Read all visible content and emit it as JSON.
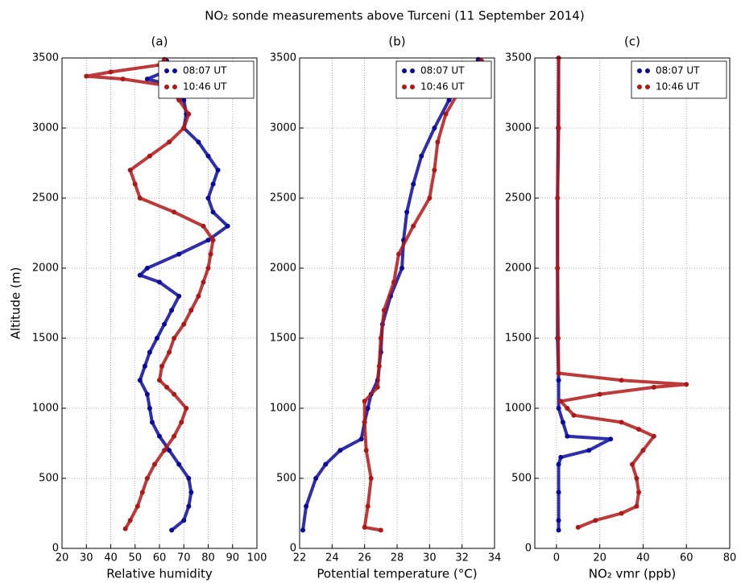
{
  "title": "NO₂ sonde measurements above Turceni (11 September 2014)",
  "chart_data": [
    {
      "type": "scatter",
      "title": "(a)",
      "xlabel": "Relative humidity",
      "ylabel": "Altitude (m)",
      "xlim": [
        20,
        100
      ],
      "xticks": [
        20,
        30,
        40,
        50,
        60,
        70,
        80,
        90,
        100
      ],
      "ylim": [
        0,
        3500
      ],
      "yticks": [
        0,
        500,
        1000,
        1500,
        2000,
        2500,
        3000,
        3500
      ],
      "grid": true,
      "legend": "upper right",
      "series": [
        {
          "name": "08:07 UT",
          "color": "#0a0a9e",
          "x": [
            65,
            70,
            72,
            73,
            72,
            68,
            64,
            60,
            57,
            56,
            55,
            52,
            54,
            56,
            59,
            62,
            65,
            68,
            60,
            52,
            55,
            68,
            80,
            88,
            82,
            80,
            82,
            84,
            80,
            76,
            70,
            71,
            70,
            66,
            55,
            62,
            63
          ],
          "values": [
            130,
            200,
            300,
            400,
            500,
            600,
            700,
            800,
            900,
            1000,
            1100,
            1200,
            1300,
            1400,
            1500,
            1600,
            1700,
            1800,
            1900,
            1950,
            2000,
            2100,
            2200,
            2300,
            2400,
            2500,
            2600,
            2700,
            2800,
            2900,
            3000,
            3100,
            3200,
            3300,
            3350,
            3400,
            3480
          ]
        },
        {
          "name": "10:46 UT",
          "color": "#b01818",
          "x": [
            46,
            48,
            51,
            53,
            55,
            58,
            62,
            66,
            69,
            71,
            66,
            63,
            60,
            61,
            64,
            66,
            70,
            73,
            76,
            78,
            80,
            81,
            82,
            78,
            66,
            52,
            50,
            48,
            56,
            64,
            70,
            72,
            68,
            64,
            45,
            30,
            40,
            60,
            62
          ],
          "values": [
            140,
            200,
            300,
            400,
            500,
            600,
            700,
            800,
            900,
            1000,
            1100,
            1150,
            1200,
            1300,
            1400,
            1500,
            1600,
            1700,
            1800,
            1900,
            2000,
            2100,
            2200,
            2300,
            2400,
            2500,
            2600,
            2700,
            2800,
            2900,
            3000,
            3100,
            3200,
            3300,
            3350,
            3370,
            3400,
            3450,
            3490
          ]
        }
      ]
    },
    {
      "type": "scatter",
      "title": "(b)",
      "xlabel": "Potential temperature (°C)",
      "xlim": [
        22,
        34
      ],
      "xticks": [
        22,
        24,
        26,
        28,
        30,
        32,
        34
      ],
      "ylim": [
        0,
        3500
      ],
      "yticks": [
        0,
        500,
        1000,
        1500,
        2000,
        2500,
        3000,
        3500
      ],
      "grid": true,
      "legend": "upper right",
      "series": [
        {
          "name": "08:07 UT",
          "color": "#0a0a9e",
          "x": [
            22.2,
            22.4,
            23.0,
            23.6,
            24.5,
            25.8,
            26.0,
            26.2,
            26.4,
            26.8,
            27.0,
            27.1,
            27.6,
            28.3,
            28.4,
            28.6,
            29.0,
            29.5,
            30.3,
            31.2,
            32.5,
            33.0
          ],
          "values": [
            130,
            300,
            500,
            600,
            700,
            780,
            900,
            1000,
            1100,
            1200,
            1400,
            1600,
            1800,
            2000,
            2200,
            2400,
            2600,
            2800,
            3000,
            3200,
            3400,
            3490
          ]
        },
        {
          "name": "10:46 UT",
          "color": "#b01818",
          "x": [
            27.0,
            26.0,
            26.2,
            26.4,
            26.1,
            26.0,
            26.0,
            26.8,
            26.9,
            27.0,
            27.2,
            27.8,
            28.1,
            29.0,
            30.0,
            30.3,
            30.5,
            31.0,
            32.0,
            33.2
          ],
          "values": [
            130,
            150,
            300,
            500,
            700,
            900,
            1050,
            1150,
            1300,
            1500,
            1700,
            1900,
            2100,
            2300,
            2500,
            2700,
            2900,
            3100,
            3300,
            3480
          ]
        }
      ]
    },
    {
      "type": "scatter",
      "title": "(c)",
      "xlabel": "NO₂ vmr (ppb)",
      "xlim": [
        -10,
        80
      ],
      "xticks": [
        0,
        20,
        40,
        60,
        80
      ],
      "ylim": [
        0,
        3500
      ],
      "yticks": [
        0,
        500,
        1000,
        1500,
        2000,
        2500,
        3000,
        3500
      ],
      "grid": true,
      "legend": "upper right",
      "series": [
        {
          "name": "08:07 UT",
          "color": "#0a0a9e",
          "x": [
            1,
            1,
            1,
            1,
            2,
            15,
            25,
            5,
            3,
            1,
            1,
            0.5,
            0.5,
            0.5,
            0.8,
            1
          ],
          "values": [
            130,
            200,
            400,
            600,
            650,
            700,
            780,
            800,
            900,
            1000,
            1200,
            1500,
            2000,
            2500,
            3000,
            3500
          ]
        },
        {
          "name": "10:46 UT",
          "color": "#b01818",
          "x": [
            10,
            18,
            30,
            37,
            38,
            37,
            35,
            40,
            45,
            38,
            30,
            8,
            5,
            2,
            20,
            45,
            60,
            30,
            1,
            0.8,
            0.5,
            0.5,
            1,
            1
          ],
          "values": [
            150,
            200,
            250,
            300,
            400,
            500,
            600,
            700,
            800,
            850,
            900,
            950,
            1000,
            1050,
            1100,
            1150,
            1170,
            1200,
            1250,
            1500,
            2000,
            2500,
            3000,
            3500
          ]
        }
      ]
    }
  ]
}
